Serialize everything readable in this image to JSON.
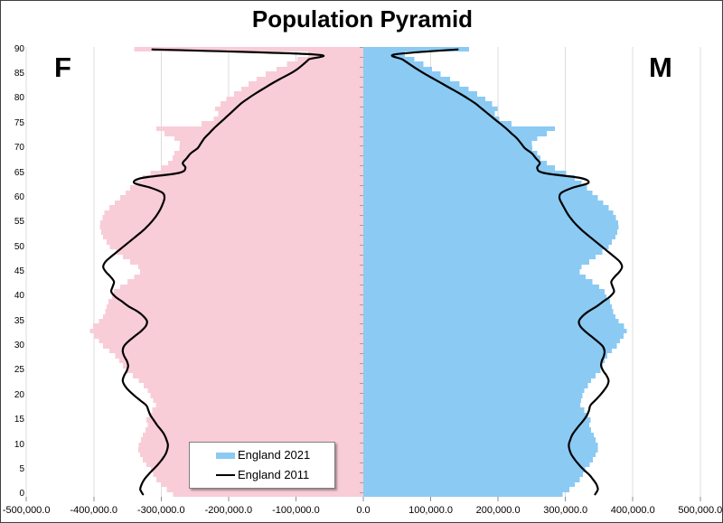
{
  "title": "Population Pyramid",
  "side_labels": {
    "female": "F",
    "male": "M"
  },
  "legend": {
    "items": [
      {
        "label": "England 2021",
        "marker": "bar-swatch",
        "color": "#8BCAF3"
      },
      {
        "label": "England 2011",
        "marker": "line-swatch",
        "color": "#000000"
      }
    ]
  },
  "colors": {
    "female_bar": "#F8CDD8",
    "male_bar": "#8BCAF3",
    "line_2011": "#000000",
    "gridline": "#DCDCDC",
    "axis_tick": "#8C8C8C",
    "center_tick": "#A0A0A0"
  },
  "chart_data": {
    "type": "bar",
    "subtype": "population-pyramid-with-line-overlay",
    "title": "Population Pyramid",
    "grid": true,
    "legend_position": "inside-bottom-left",
    "x_axis": {
      "min": -500000,
      "max": 500000,
      "tick_interval": 100000,
      "tick_values": [
        -500000,
        -400000,
        -300000,
        -200000,
        -100000,
        0,
        100000,
        200000,
        300000,
        400000,
        500000
      ],
      "tick_labels": [
        "-500,000.0",
        "-400,000.0",
        "-300,000.0",
        "-200,000.0",
        "-100,000.0",
        "0.0",
        "100,000.0",
        "200,000.0",
        "300,000.0",
        "400,000.0",
        "500,000.0"
      ]
    },
    "y_axis": {
      "description": "age in single years, top bar = 90+",
      "min": 0,
      "max": 90,
      "tick_interval": 5,
      "tick_values": [
        0,
        5,
        10,
        15,
        20,
        25,
        30,
        35,
        40,
        45,
        50,
        55,
        60,
        65,
        70,
        75,
        80,
        85,
        90
      ]
    },
    "series": [
      {
        "name": "England 2021",
        "sex": "F",
        "style": "bar",
        "side": "left",
        "color": "#F8CDD8",
        "values": [
          282000,
          292000,
          300000,
          307000,
          312000,
          315000,
          322000,
          327000,
          331000,
          334000,
          333000,
          330000,
          327000,
          323000,
          320000,
          322000,
          318000,
          313000,
          308000,
          312000,
          316000,
          320000,
          326000,
          333000,
          342000,
          352000,
          357000,
          362000,
          368000,
          377000,
          386000,
          392000,
          399000,
          406000,
          401000,
          392000,
          386000,
          383000,
          381000,
          378000,
          373000,
          370000,
          361000,
          350000,
          340000,
          331000,
          334000,
          346000,
          357000,
          367000,
          376000,
          381000,
          386000,
          389000,
          391000,
          390000,
          387000,
          384000,
          377000,
          369000,
          361000,
          353000,
          346000,
          338000,
          328000,
          316000,
          300000,
          290000,
          283000,
          280000,
          273000,
          272000,
          280000,
          295000,
          307000,
          240000,
          222000,
          215000,
          220000,
          212000,
          203000,
          192000,
          181000,
          170000,
          158000,
          145000,
          129000,
          113000,
          98000,
          82000,
          340000
        ]
      },
      {
        "name": "England 2021",
        "sex": "M",
        "style": "bar",
        "side": "right",
        "color": "#8BCAF3",
        "values": [
          296000,
          306000,
          314000,
          321000,
          326000,
          329000,
          336000,
          341000,
          345000,
          348000,
          348000,
          345000,
          342000,
          338000,
          335000,
          337000,
          333000,
          328000,
          322000,
          323000,
          325000,
          328000,
          333000,
          338000,
          345000,
          352000,
          355000,
          358000,
          362000,
          369000,
          376000,
          381000,
          386000,
          391000,
          387000,
          379000,
          374000,
          371000,
          369000,
          366000,
          361000,
          358000,
          350000,
          340000,
          330000,
          321000,
          324000,
          335000,
          345000,
          355000,
          364000,
          369000,
          374000,
          377000,
          379000,
          378000,
          375000,
          371000,
          364000,
          356000,
          348000,
          340000,
          332000,
          324000,
          314000,
          301000,
          284000,
          272000,
          263000,
          258000,
          251000,
          250000,
          258000,
          272000,
          284000,
          220000,
          202000,
          195000,
          199000,
          191000,
          181000,
          169000,
          156000,
          143000,
          129000,
          115000,
          102000,
          89000,
          76000,
          62000,
          157000
        ]
      },
      {
        "name": "England 2011",
        "sex": "F",
        "style": "line",
        "side": "left",
        "color": "#000000",
        "values": [
          327000,
          331000,
          329000,
          325000,
          319000,
          312000,
          305000,
          299000,
          294000,
          291000,
          290000,
          292000,
          295000,
          300000,
          306000,
          311000,
          316000,
          319000,
          322000,
          331000,
          340000,
          348000,
          354000,
          357000,
          355000,
          351000,
          349000,
          351000,
          355000,
          357000,
          355000,
          348000,
          339000,
          330000,
          323000,
          321000,
          326000,
          335000,
          348000,
          358000,
          368000,
          374000,
          372000,
          370000,
          375000,
          382000,
          386000,
          383000,
          375000,
          366000,
          357000,
          348000,
          339000,
          330000,
          322000,
          315000,
          309000,
          304000,
          300000,
          297000,
          295000,
          298000,
          315000,
          340000,
          328000,
          274000,
          264000,
          268000,
          262000,
          256000,
          246000,
          241000,
          236000,
          229000,
          222000,
          214000,
          206000,
          198000,
          190000,
          182000,
          172000,
          161000,
          149000,
          137000,
          124000,
          110000,
          98000,
          89000,
          81000,
          75000,
          313000
        ]
      },
      {
        "name": "England 2011",
        "sex": "M",
        "style": "line",
        "side": "right",
        "color": "#000000",
        "values": [
          344000,
          348000,
          346000,
          341000,
          335000,
          327000,
          320000,
          314000,
          309000,
          306000,
          305000,
          307000,
          310000,
          315000,
          321000,
          327000,
          332000,
          335000,
          337000,
          344000,
          351000,
          357000,
          362000,
          364000,
          361000,
          356000,
          353000,
          354000,
          357000,
          358000,
          355000,
          347000,
          338000,
          329000,
          322000,
          320000,
          325000,
          334000,
          346000,
          356000,
          366000,
          372000,
          370000,
          368000,
          373000,
          380000,
          384000,
          381000,
          373000,
          364000,
          355000,
          346000,
          337000,
          328000,
          320000,
          313000,
          307000,
          302000,
          298000,
          294000,
          291000,
          294000,
          310000,
          334000,
          322000,
          268000,
          258000,
          262000,
          256000,
          250000,
          240000,
          234000,
          228000,
          220000,
          212000,
          203000,
          194000,
          185000,
          176000,
          167000,
          156000,
          144000,
          131000,
          118000,
          105000,
          92000,
          80000,
          69000,
          58000,
          47000,
          140000
        ]
      }
    ]
  }
}
